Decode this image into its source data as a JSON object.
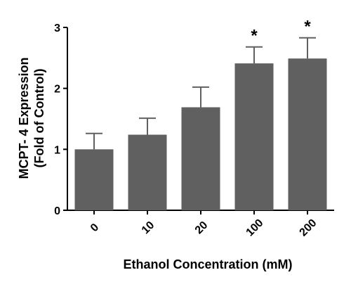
{
  "chart_data": {
    "type": "bar",
    "categories": [
      "0",
      "10",
      "20",
      "100",
      "200"
    ],
    "values": [
      1.0,
      1.24,
      1.69,
      2.41,
      2.49
    ],
    "errors": [
      0.26,
      0.27,
      0.33,
      0.27,
      0.34
    ],
    "significance": [
      "",
      "",
      "",
      "*",
      "*"
    ],
    "xlabel": "Ethanol Concentration (mM)",
    "ylabel_line1": "MCPT- 4 Expression",
    "ylabel_line2": "(Fold of Control)",
    "ylim": [
      0,
      3
    ],
    "yticks": [
      "0",
      "1",
      "2",
      "3"
    ],
    "bar_color": "#606060",
    "grid": false
  }
}
